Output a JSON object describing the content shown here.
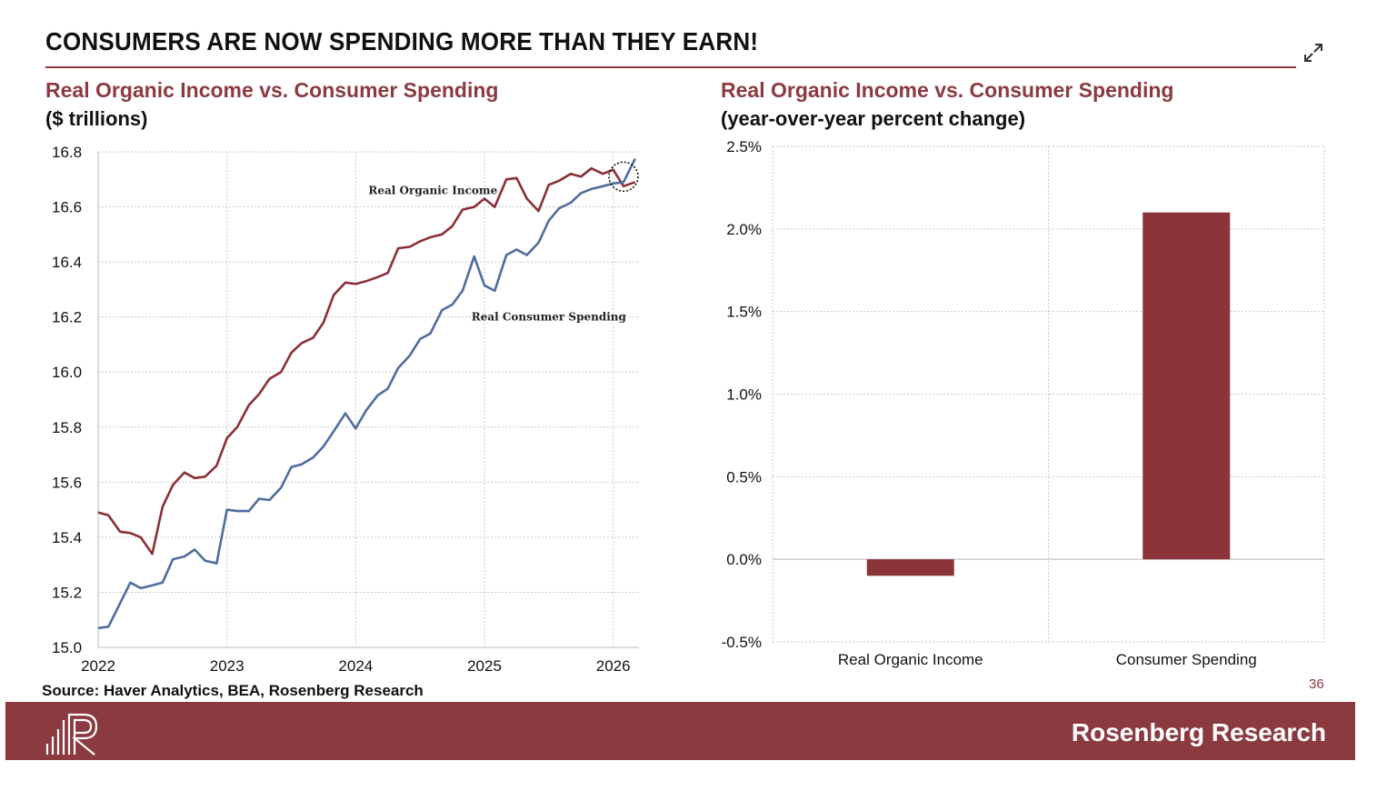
{
  "header": {
    "title": "CONSUMERS ARE NOW SPENDING MORE THAN THEY EARN!",
    "expand_icon": "expand-icon"
  },
  "left_panel": {
    "title": "Real Organic Income vs. Consumer Spending",
    "subtitle": "($ trillions)"
  },
  "right_panel": {
    "title": "Real Organic Income vs. Consumer Spending",
    "subtitle": "(year-over-year percent change)"
  },
  "source": "Source: Haver Analytics, BEA, Rosenberg Research",
  "page_number": "36",
  "footer": {
    "brand": "Rosenberg Research",
    "logo_icon": "rosenberg-logo-icon"
  },
  "colors": {
    "accent": "#8b3a40",
    "income_line": "#8b2f37",
    "spending_line": "#4f6d9e",
    "bar": "#8b353b"
  },
  "chart_data": [
    {
      "type": "line",
      "xlim": [
        2022,
        2026.2
      ],
      "ylim": [
        15.0,
        16.8
      ],
      "x_ticks": [
        "2022",
        "2023",
        "2024",
        "2025",
        "2026"
      ],
      "y_ticks": [
        "16.8",
        "16.6",
        "16.4",
        "16.2",
        "16.0",
        "15.8",
        "15.6",
        "15.4",
        "15.2",
        "15.0"
      ],
      "grid": true,
      "annotations": [
        {
          "text": "Real Organic Income",
          "x": 2024.6,
          "y": 16.66
        },
        {
          "text": "Real Consumer Spending",
          "x": 2025.5,
          "y": 16.2
        }
      ],
      "highlight_circle": {
        "x": 2026.08,
        "y": 16.71
      },
      "series": [
        {
          "name": "Real Organic Income",
          "x": [
            2022.0,
            2022.08,
            2022.17,
            2022.25,
            2022.33,
            2022.42,
            2022.5,
            2022.58,
            2022.67,
            2022.75,
            2022.83,
            2022.92,
            2023.0,
            2023.08,
            2023.17,
            2023.25,
            2023.33,
            2023.42,
            2023.5,
            2023.58,
            2023.67,
            2023.75,
            2023.83,
            2023.92,
            2024.0,
            2024.08,
            2024.17,
            2024.25,
            2024.33,
            2024.42,
            2024.5,
            2024.58,
            2024.67,
            2024.75,
            2024.83,
            2024.92,
            2025.0,
            2025.08,
            2025.17,
            2025.25,
            2025.33,
            2025.42,
            2025.5,
            2025.58,
            2025.67,
            2025.75,
            2025.83,
            2025.92,
            2026.0,
            2026.08,
            2026.17
          ],
          "y": [
            15.49,
            15.48,
            15.42,
            15.415,
            15.4,
            15.34,
            15.51,
            15.59,
            15.635,
            15.615,
            15.62,
            15.66,
            15.76,
            15.8,
            15.88,
            15.92,
            15.975,
            16.0,
            16.07,
            16.105,
            16.125,
            16.18,
            16.28,
            16.325,
            16.32,
            16.33,
            16.345,
            16.36,
            16.45,
            16.455,
            16.475,
            16.49,
            16.5,
            16.53,
            16.59,
            16.6,
            16.63,
            16.6,
            16.7,
            16.705,
            16.63,
            16.585,
            16.68,
            16.695,
            16.72,
            16.71,
            16.74,
            16.72,
            16.735,
            16.675,
            16.69
          ]
        },
        {
          "name": "Real Consumer Spending",
          "x": [
            2022.0,
            2022.08,
            2022.17,
            2022.25,
            2022.33,
            2022.42,
            2022.5,
            2022.58,
            2022.67,
            2022.75,
            2022.83,
            2022.92,
            2023.0,
            2023.08,
            2023.17,
            2023.25,
            2023.33,
            2023.42,
            2023.5,
            2023.58,
            2023.67,
            2023.75,
            2023.83,
            2023.92,
            2024.0,
            2024.08,
            2024.17,
            2024.25,
            2024.33,
            2024.42,
            2024.5,
            2024.58,
            2024.67,
            2024.75,
            2024.83,
            2024.92,
            2025.0,
            2025.08,
            2025.17,
            2025.25,
            2025.33,
            2025.42,
            2025.5,
            2025.58,
            2025.67,
            2025.75,
            2025.83,
            2025.92,
            2026.0,
            2026.08,
            2026.17
          ],
          "y": [
            15.07,
            15.075,
            15.16,
            15.235,
            15.215,
            15.225,
            15.235,
            15.32,
            15.33,
            15.355,
            15.315,
            15.305,
            15.5,
            15.495,
            15.495,
            15.54,
            15.535,
            15.58,
            15.655,
            15.665,
            15.69,
            15.73,
            15.785,
            15.85,
            15.795,
            15.86,
            15.915,
            15.94,
            16.015,
            16.06,
            16.12,
            16.14,
            16.225,
            16.245,
            16.295,
            16.42,
            16.315,
            16.295,
            16.425,
            16.445,
            16.425,
            16.47,
            16.55,
            16.595,
            16.615,
            16.65,
            16.665,
            16.675,
            16.685,
            16.69,
            16.775
          ]
        }
      ]
    },
    {
      "type": "bar",
      "categories": [
        "Real Organic Income",
        "Consumer Spending"
      ],
      "values": [
        -0.1,
        2.1
      ],
      "ylim": [
        -0.5,
        2.5
      ],
      "y_ticks": [
        "2.5%",
        "2.0%",
        "1.5%",
        "1.0%",
        "0.5%",
        "0.0%",
        "-0.5%"
      ],
      "grid": true
    }
  ]
}
